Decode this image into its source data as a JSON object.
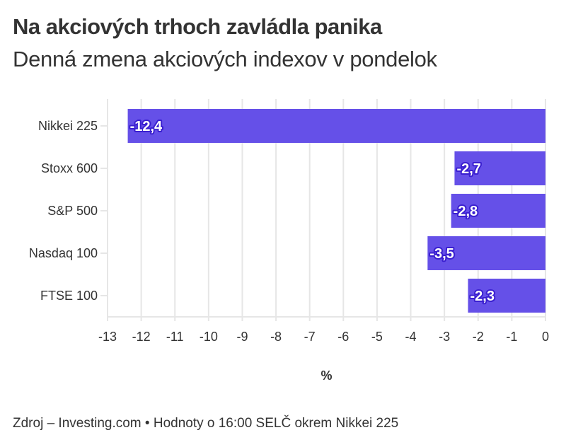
{
  "chart_data": {
    "type": "bar",
    "orientation": "horizontal",
    "title": "Na akciových trhoch zavládla panika",
    "subtitle": "Denná zmena akciových indexov v pondelok",
    "categories": [
      "Nikkei 225",
      "Stoxx 600",
      "S&P 500",
      "Nasdaq 100",
      "FTSE 100"
    ],
    "values": [
      -12.4,
      -2.7,
      -2.8,
      -3.5,
      -2.3
    ],
    "data_labels": [
      "-12,4",
      "-2,7",
      "-2,8",
      "-3,5",
      "-2,3"
    ],
    "xlabel": "%",
    "xlim": [
      -13,
      0
    ],
    "xticks": [
      "-13",
      "-12",
      "-11",
      "-10",
      "-9",
      "-8",
      "-7",
      "-6",
      "-5",
      "-4",
      "-3",
      "-2",
      "-1",
      "0"
    ],
    "grid": true,
    "bar_color": "#6550e8",
    "source": "Zdroj – Investing.com • Hodnoty o 16:00 SELČ okrem Nikkei 225"
  }
}
